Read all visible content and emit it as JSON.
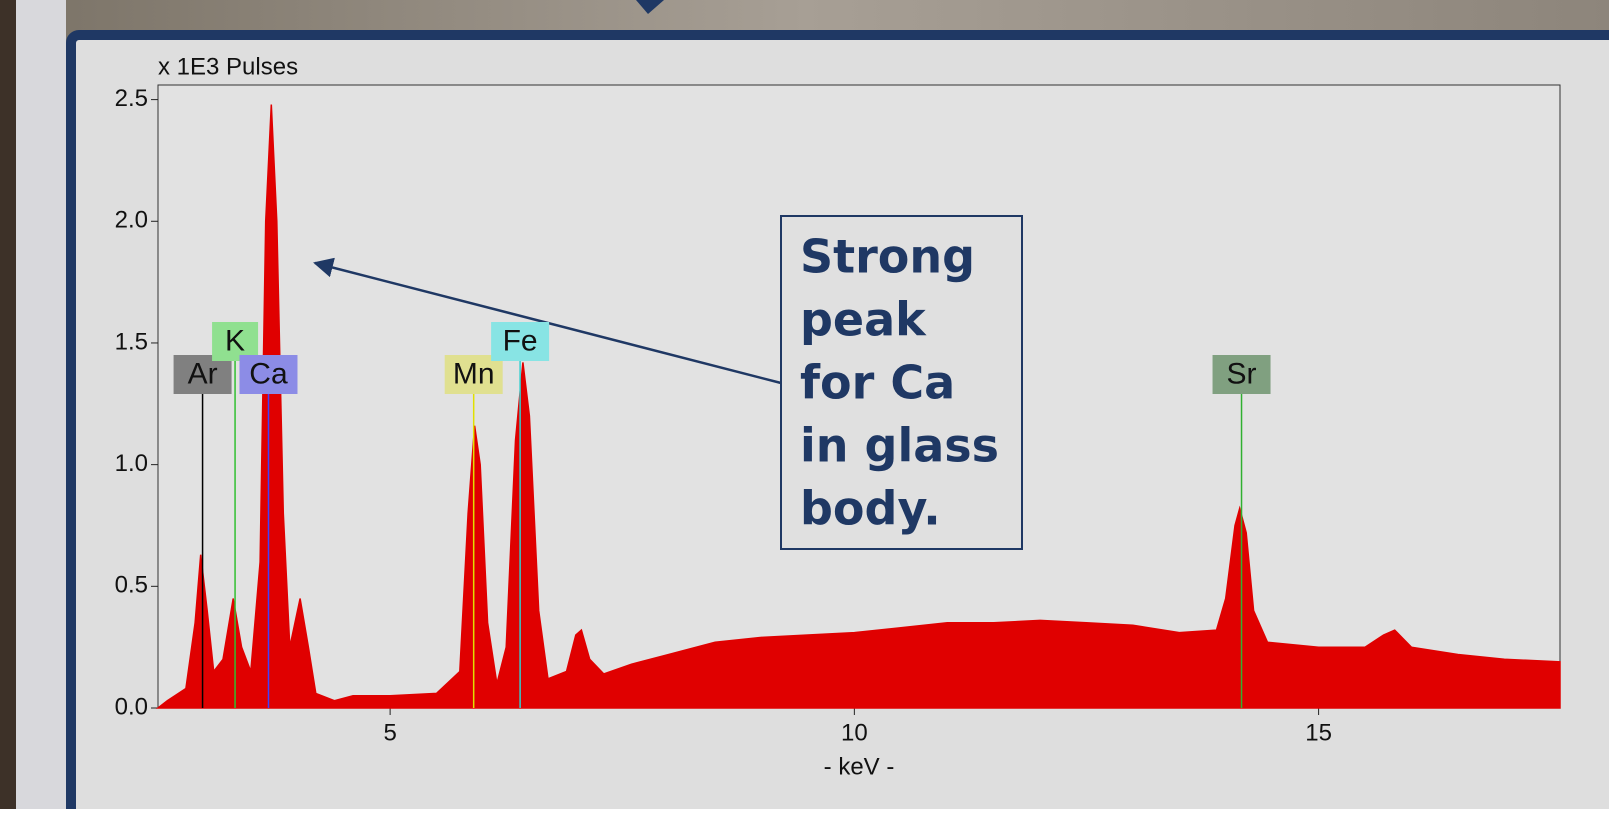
{
  "chart_data": {
    "type": "area",
    "y_label": "x 1E3 Pulses",
    "x_label": "- keV -",
    "color": "#e00000",
    "xlim": [
      2.5,
      17.6
    ],
    "ylim": [
      0,
      2.56
    ],
    "xticks": [
      5,
      10,
      15
    ],
    "yticks": [
      {
        "value": 0,
        "label": "0.0"
      },
      0.5,
      {
        "value": 1,
        "label": "1.0"
      },
      1.5,
      {
        "value": 2,
        "label": "2.0"
      },
      2.5
    ],
    "x": [
      2.5,
      2.6,
      2.8,
      2.9,
      2.96,
      3.03,
      3.1,
      3.2,
      3.31,
      3.4,
      3.5,
      3.6,
      3.66,
      3.72,
      3.78,
      3.85,
      3.92,
      4.03,
      4.12,
      4.2,
      4.4,
      4.6,
      5.0,
      5.5,
      5.75,
      5.84,
      5.91,
      5.97,
      6.05,
      6.15,
      6.25,
      6.35,
      6.43,
      6.5,
      6.6,
      6.7,
      6.9,
      7.0,
      7.06,
      7.15,
      7.3,
      7.6,
      8.0,
      8.5,
      9.0,
      9.5,
      10.0,
      10.5,
      11.0,
      11.5,
      12.0,
      12.5,
      13.0,
      13.5,
      13.9,
      14.0,
      14.1,
      14.15,
      14.22,
      14.3,
      14.45,
      15.0,
      15.5,
      15.7,
      15.82,
      16.0,
      16.5,
      17.0,
      17.6
    ],
    "values": [
      0.0,
      0.03,
      0.08,
      0.35,
      0.63,
      0.4,
      0.15,
      0.2,
      0.45,
      0.25,
      0.15,
      0.6,
      2.0,
      2.48,
      2.0,
      0.8,
      0.25,
      0.45,
      0.25,
      0.06,
      0.03,
      0.05,
      0.05,
      0.06,
      0.15,
      0.8,
      1.16,
      1.0,
      0.35,
      0.1,
      0.25,
      1.1,
      1.42,
      1.2,
      0.4,
      0.12,
      0.15,
      0.3,
      0.32,
      0.2,
      0.14,
      0.18,
      0.22,
      0.27,
      0.29,
      0.3,
      0.31,
      0.33,
      0.35,
      0.35,
      0.36,
      0.35,
      0.34,
      0.31,
      0.32,
      0.45,
      0.75,
      0.82,
      0.72,
      0.4,
      0.27,
      0.25,
      0.25,
      0.3,
      0.32,
      0.25,
      0.22,
      0.2,
      0.19
    ],
    "element_lines": [
      {
        "label": "Ar",
        "x": 2.98,
        "color": "#000000",
        "box_color": "#808080"
      },
      {
        "label": "K",
        "x": 3.33,
        "color": "#30c030",
        "box_color": "#90e090"
      },
      {
        "label": "Ca",
        "x": 3.69,
        "color": "#4040ff",
        "box_color": "#8c8ce6"
      },
      {
        "label": "Mn",
        "x": 5.9,
        "color": "#e0e000",
        "box_color": "#e0e090"
      },
      {
        "label": "Fe",
        "x": 6.4,
        "color": "#30d0d0",
        "box_color": "#88e4e4"
      },
      {
        "label": "Sr",
        "x": 14.17,
        "color": "#30b030",
        "box_color": "#80a080"
      }
    ],
    "annotation": {
      "lines": [
        "Strong",
        "peak",
        "for Ca",
        "in glass",
        "body."
      ]
    }
  }
}
